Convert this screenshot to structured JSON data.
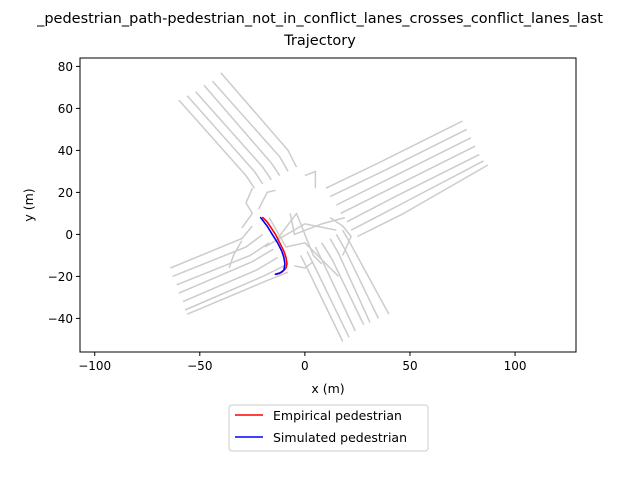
{
  "chart_data": {
    "type": "line",
    "title_lines": [
      "_pedestrian_path-pedestrian_not_in_conflict_lanes_crosses_conflict_lanes_last",
      "Trajectory"
    ],
    "xlabel": "x (m)",
    "ylabel": "y (m)",
    "xlim": [
      -107,
      129
    ],
    "ylim": [
      -56,
      84
    ],
    "xticks": [
      -100,
      -50,
      0,
      50,
      100
    ],
    "yticks": [
      -40,
      -20,
      0,
      20,
      40,
      60,
      80
    ],
    "grid": false,
    "legend_position": "below the axes, centered",
    "background_lanes": {
      "color": "#cccccc",
      "lines": [
        [
          [
            -60,
            64
          ],
          [
            -28,
            28
          ],
          [
            -24,
            22
          ]
        ],
        [
          [
            -56,
            66
          ],
          [
            -24,
            30
          ],
          [
            -20,
            24
          ]
        ],
        [
          [
            -52,
            68
          ],
          [
            -20,
            32
          ],
          [
            -16,
            26
          ]
        ],
        [
          [
            -48,
            71
          ],
          [
            -16,
            34
          ],
          [
            -12,
            28
          ]
        ],
        [
          [
            -44,
            73
          ],
          [
            -12,
            37
          ],
          [
            -8,
            30
          ]
        ],
        [
          [
            -40,
            77
          ],
          [
            -8,
            40
          ],
          [
            -4,
            32
          ]
        ],
        [
          [
            -64,
            -16
          ],
          [
            -30,
            -2
          ],
          [
            -25,
            4
          ]
        ],
        [
          [
            -63,
            -20
          ],
          [
            -28,
            -6
          ],
          [
            -20,
            0
          ]
        ],
        [
          [
            -61,
            -24
          ],
          [
            -26,
            -10
          ],
          [
            -17,
            -4
          ]
        ],
        [
          [
            -60,
            -28
          ],
          [
            -25,
            -13
          ],
          [
            -15,
            -7
          ]
        ],
        [
          [
            -58,
            -32
          ],
          [
            -23,
            -17
          ],
          [
            -13,
            -11
          ]
        ],
        [
          [
            -57,
            -36
          ],
          [
            -20,
            -20
          ],
          [
            -10,
            -15
          ]
        ],
        [
          [
            -56,
            -38
          ],
          [
            -18,
            -22
          ],
          [
            -8,
            -18
          ]
        ],
        [
          [
            75,
            54
          ],
          [
            35,
            34
          ],
          [
            10,
            22
          ]
        ],
        [
          [
            77,
            50
          ],
          [
            37,
            30
          ],
          [
            12,
            18
          ]
        ],
        [
          [
            79,
            46
          ],
          [
            39,
            26
          ],
          [
            15,
            14
          ]
        ],
        [
          [
            81,
            42
          ],
          [
            41,
            22
          ],
          [
            17,
            10
          ]
        ],
        [
          [
            83,
            38
          ],
          [
            43,
            18
          ],
          [
            20,
            6
          ]
        ],
        [
          [
            85,
            35
          ],
          [
            45,
            14
          ],
          [
            22,
            2
          ]
        ],
        [
          [
            87,
            33
          ],
          [
            47,
            10
          ],
          [
            25,
            -1
          ]
        ],
        [
          [
            18,
            -51
          ],
          [
            2,
            -18
          ],
          [
            -2,
            -10
          ]
        ],
        [
          [
            21,
            -49
          ],
          [
            5,
            -16
          ],
          [
            1,
            -8
          ]
        ],
        [
          [
            24,
            -46
          ],
          [
            9,
            -14
          ],
          [
            5,
            -6
          ]
        ],
        [
          [
            28,
            -43
          ],
          [
            13,
            -12
          ],
          [
            8,
            -4
          ]
        ],
        [
          [
            31,
            -42
          ],
          [
            16,
            -9
          ],
          [
            12,
            -2
          ]
        ],
        [
          [
            35,
            -40
          ],
          [
            19,
            -7
          ],
          [
            15,
            0
          ]
        ],
        [
          [
            40,
            -38
          ],
          [
            22,
            -5
          ],
          [
            18,
            2
          ]
        ],
        [
          [
            -30,
            3
          ],
          [
            -25,
            10
          ],
          [
            -28,
            15
          ],
          [
            -25,
            22
          ]
        ],
        [
          [
            -30,
            -3
          ],
          [
            -34,
            -10
          ],
          [
            -36,
            -16
          ]
        ],
        [
          [
            -22,
            12
          ],
          [
            -18,
            20
          ],
          [
            -14,
            21
          ]
        ],
        [
          [
            5,
            22
          ],
          [
            5,
            30
          ],
          [
            0,
            28
          ]
        ],
        [
          [
            -7,
            10
          ],
          [
            -5,
            0
          ],
          [
            8,
            5
          ],
          [
            19,
            8
          ]
        ],
        [
          [
            -19,
            -6
          ],
          [
            0,
            5
          ],
          [
            15,
            2
          ]
        ],
        [
          [
            -13,
            -2
          ],
          [
            -4,
            10
          ],
          [
            4,
            -10
          ],
          [
            8,
            -14
          ]
        ],
        [
          [
            -17,
            8
          ],
          [
            -9,
            -6
          ],
          [
            0,
            -4
          ],
          [
            16,
            -20
          ]
        ],
        [
          [
            18,
            -10
          ],
          [
            22,
            -1
          ],
          [
            18,
            4
          ],
          [
            12,
            8
          ]
        ],
        [
          [
            -5,
            -15
          ],
          [
            0,
            -16
          ],
          [
            4,
            -13
          ]
        ]
      ]
    },
    "series": [
      {
        "name": "Empirical pedestrian",
        "color": "#ff0000",
        "x": [
          -14,
          -11,
          -9,
          -8.5,
          -9,
          -10,
          -12,
          -14,
          -16,
          -18,
          -20
        ],
        "y": [
          -19,
          -18,
          -16,
          -14,
          -11,
          -8,
          -4,
          0,
          3,
          6,
          8
        ]
      },
      {
        "name": "Simulated pedestrian",
        "color": "#0000ff",
        "x": [
          -21,
          -18,
          -15.5,
          -13,
          -11,
          -10,
          -9.5,
          -10,
          -12,
          -14
        ],
        "y": [
          8,
          4,
          0,
          -4,
          -8,
          -11,
          -14,
          -17,
          -18.5,
          -19
        ]
      }
    ]
  }
}
